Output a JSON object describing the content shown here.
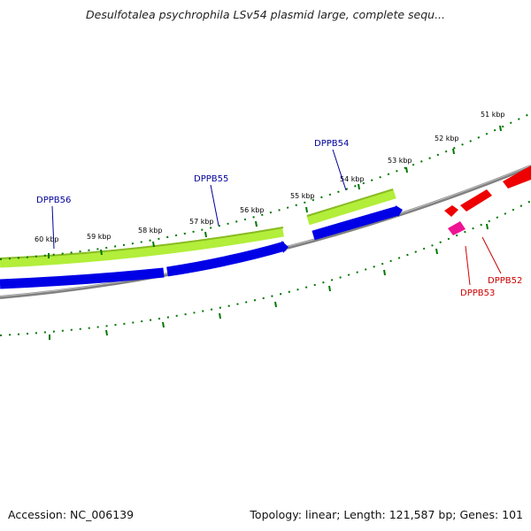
{
  "title": "Desulfotalea psychrophila LSv54 plasmid large, complete sequ...",
  "footer": {
    "accession": "Accession: NC_006139",
    "summary": "Topology: linear; Length: 121,587 bp; Genes: 101"
  },
  "ticks": [
    "51 kbp",
    "52 kbp",
    "53 kbp",
    "54 kbp",
    "55 kbp",
    "56 kbp",
    "57 kbp",
    "58 kbp",
    "59 kbp",
    "60 kbp"
  ],
  "genes": [
    {
      "name": "DPPB56",
      "color": "#000099"
    },
    {
      "name": "DPPB55",
      "color": "#000099"
    },
    {
      "name": "DPPB54",
      "color": "#000099"
    },
    {
      "name": "DPPB53",
      "color": "#cc0000"
    },
    {
      "name": "DPPB52",
      "color": "#cc0000"
    }
  ],
  "colors": {
    "backbone": "#808080",
    "forward_gene": "#b2ee3a",
    "reverse_gene": "#0000e6",
    "red_gene": "#ee0000",
    "pink_gene": "#ee1493",
    "tick": "#007700"
  }
}
